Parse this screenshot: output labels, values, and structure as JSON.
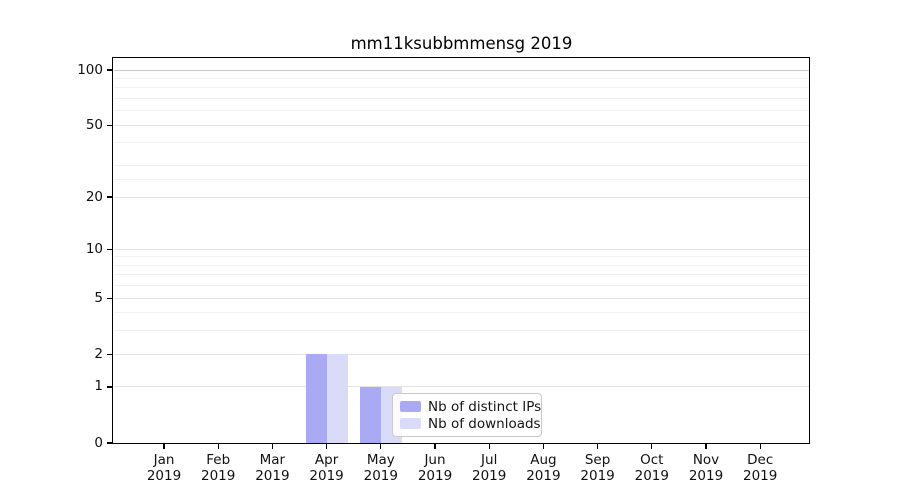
{
  "chart_data": {
    "type": "bar",
    "title": "mm11ksubbmmensg 2019",
    "categories": [
      "Jan",
      "Feb",
      "Mar",
      "Apr",
      "May",
      "Jun",
      "Jul",
      "Aug",
      "Sep",
      "Oct",
      "Nov",
      "Dec"
    ],
    "year": "2019",
    "series": [
      {
        "name": "Nb of distinct IPs",
        "color": "#a9a9f4",
        "values": [
          0,
          0,
          0,
          2,
          1,
          0,
          0,
          0,
          0,
          0,
          0,
          0
        ]
      },
      {
        "name": "Nb of downloads",
        "color": "#dadaf9",
        "values": [
          0,
          0,
          0,
          2,
          1,
          0,
          0,
          0,
          0,
          0,
          0,
          0
        ]
      }
    ],
    "xlabel": "",
    "ylabel": "",
    "scale": "log1p",
    "y_ticks": [
      0,
      1,
      2,
      5,
      10,
      20,
      50,
      100
    ],
    "y_minor_ticks": [
      3,
      4,
      6,
      7,
      8,
      9,
      25,
      30,
      40,
      60,
      70,
      80,
      90
    ],
    "ylim": [
      0,
      116
    ],
    "grid": {
      "enabled": true,
      "major_color": "#e3e3e3",
      "minor_color": "#f1f1f1",
      "top_major_color": "#c8c8c8"
    },
    "legend": {
      "position": "lower center"
    },
    "colors": {
      "axis": "#000000",
      "text": "#111111",
      "background": "#ffffff"
    }
  }
}
